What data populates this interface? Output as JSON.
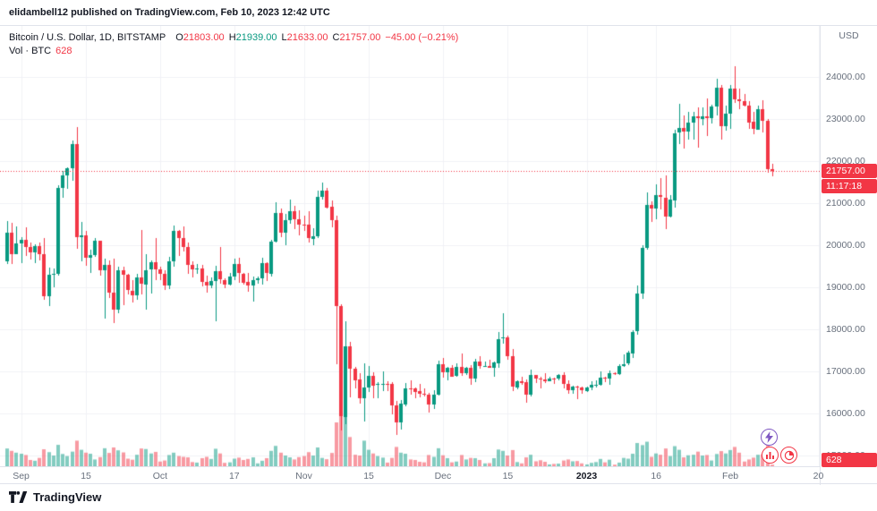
{
  "topbar": {
    "text": "elidambell12 published on TradingView.com, Feb 10, 2023 12:42 UTC"
  },
  "legend": {
    "symbol": "Bitcoin / U.S. Dollar, 1D, BITSTAMP",
    "o_label": "O",
    "o": "21803.00",
    "h_label": "H",
    "h": "21939.00",
    "l_label": "L",
    "l": "21633.00",
    "c_label": "C",
    "c": "21757.00",
    "change": "−45.00 (−0.21%)",
    "vol_label": "Vol · BTC",
    "vol_value": "628"
  },
  "price_scale": {
    "currency": "USD",
    "last_price": "21757.00",
    "countdown": "11:17:18",
    "volume": "628"
  },
  "footer": {
    "brand": "TradingView"
  },
  "icons": {
    "boost": "lightning-icon",
    "reaction_1": "bar-chart-icon",
    "reaction_2": "pie-chart-icon",
    "logo": "tradingview-logo"
  },
  "colors": {
    "up": "#089981",
    "down": "#f23645",
    "vol_up": "rgba(8,153,129,0.5)",
    "vol_down": "rgba(242,54,69,0.5)",
    "badge_bg": "#f23645",
    "boost_purple": "#7e57c2",
    "grid": "#f0f2f6"
  },
  "chart_data": {
    "type": "candlestick",
    "title": "Bitcoin / U.S. Dollar",
    "interval": "1D",
    "exchange": "BITSTAMP",
    "currency": "USD",
    "start_date": "2022-08-29",
    "last_close": 21757,
    "ylim": [
      14750,
      25200
    ],
    "y_ticks": [
      24000,
      23000,
      22000,
      21000,
      20000,
      19000,
      18000,
      17000,
      16000,
      15000
    ],
    "x_ticks": [
      {
        "i": 3,
        "label": "Sep"
      },
      {
        "i": 17,
        "label": "15"
      },
      {
        "i": 33,
        "label": "Oct"
      },
      {
        "i": 49,
        "label": "17"
      },
      {
        "i": 64,
        "label": "Nov"
      },
      {
        "i": 78,
        "label": "15"
      },
      {
        "i": 94,
        "label": "Dec"
      },
      {
        "i": 108,
        "label": "15"
      },
      {
        "i": 125,
        "label": "2023",
        "major": true
      },
      {
        "i": 140,
        "label": "16"
      },
      {
        "i": 156,
        "label": "Feb"
      },
      {
        "i": 175,
        "label": "20"
      }
    ],
    "columns": [
      "open",
      "high",
      "low",
      "close",
      "volume_btc"
    ],
    "candles": [
      [
        19616,
        20576,
        19553,
        20297,
        6800
      ],
      [
        20297,
        20542,
        19570,
        19796,
        5900
      ],
      [
        19796,
        20449,
        19791,
        20050,
        5200
      ],
      [
        20050,
        20198,
        19583,
        20130,
        4800
      ],
      [
        20130,
        20432,
        19758,
        19951,
        4300
      ],
      [
        19951,
        20055,
        19655,
        19831,
        2400
      ],
      [
        19831,
        20025,
        19588,
        19988,
        2100
      ],
      [
        19988,
        20060,
        19635,
        19794,
        3200
      ],
      [
        19794,
        20180,
        18716,
        18790,
        6500
      ],
      [
        18790,
        19464,
        18540,
        19290,
        5400
      ],
      [
        19290,
        19450,
        19000,
        19320,
        4100
      ],
      [
        19320,
        21430,
        19290,
        21360,
        8200
      ],
      [
        21360,
        21770,
        21130,
        21650,
        4700
      ],
      [
        21650,
        21850,
        21350,
        21826,
        3900
      ],
      [
        21826,
        22488,
        21536,
        22395,
        5600
      ],
      [
        22395,
        22799,
        19900,
        20173,
        9800
      ],
      [
        20173,
        20550,
        19620,
        20226,
        6300
      ],
      [
        20226,
        20330,
        19501,
        19701,
        5200
      ],
      [
        19701,
        19890,
        19335,
        19772,
        4800
      ],
      [
        19772,
        20180,
        19742,
        20115,
        2600
      ],
      [
        20115,
        20117,
        19289,
        19416,
        3500
      ],
      [
        19416,
        19690,
        18256,
        19537,
        6900
      ],
      [
        19537,
        19639,
        18750,
        18875,
        5100
      ],
      [
        18875,
        19688,
        18155,
        18461,
        7200
      ],
      [
        18461,
        19500,
        18390,
        19401,
        6100
      ],
      [
        19401,
        19480,
        18566,
        19289,
        5300
      ],
      [
        19289,
        19310,
        18813,
        18920,
        2900
      ],
      [
        18920,
        19180,
        18648,
        18807,
        2500
      ],
      [
        18807,
        19320,
        18707,
        19227,
        4400
      ],
      [
        19227,
        20370,
        18830,
        19079,
        6800
      ],
      [
        19079,
        19790,
        18477,
        19412,
        6600
      ],
      [
        19412,
        19640,
        18852,
        19591,
        4900
      ],
      [
        19591,
        20175,
        19170,
        19422,
        5500
      ],
      [
        19422,
        19484,
        19160,
        19312,
        1800
      ],
      [
        19312,
        19398,
        18920,
        19044,
        2200
      ],
      [
        19044,
        19717,
        18958,
        19623,
        4300
      ],
      [
        19623,
        20475,
        19500,
        20336,
        5200
      ],
      [
        20336,
        20365,
        19740,
        20160,
        3900
      ],
      [
        20160,
        20456,
        19870,
        19955,
        3600
      ],
      [
        19955,
        20060,
        19320,
        19527,
        3400
      ],
      [
        19527,
        19617,
        19240,
        19416,
        1600
      ],
      [
        19416,
        19558,
        19321,
        19441,
        1400
      ],
      [
        19441,
        19525,
        19021,
        19131,
        3100
      ],
      [
        19131,
        19270,
        18860,
        19043,
        3600
      ],
      [
        19043,
        19230,
        18980,
        19153,
        2800
      ],
      [
        19153,
        19513,
        18190,
        19378,
        6700
      ],
      [
        19378,
        19948,
        19070,
        19178,
        4900
      ],
      [
        19178,
        19210,
        18975,
        19067,
        1300
      ],
      [
        19067,
        19330,
        19027,
        19260,
        1500
      ],
      [
        19260,
        19673,
        19155,
        19548,
        2900
      ],
      [
        19548,
        19706,
        19100,
        19327,
        3300
      ],
      [
        19327,
        19348,
        19066,
        19122,
        2400
      ],
      [
        19122,
        19347,
        18905,
        19041,
        2800
      ],
      [
        19041,
        19250,
        18650,
        19164,
        3400
      ],
      [
        19164,
        19257,
        19090,
        19203,
        1100
      ],
      [
        19203,
        19700,
        19070,
        19570,
        2100
      ],
      [
        19570,
        19601,
        19157,
        19328,
        3100
      ],
      [
        19328,
        20120,
        19255,
        20085,
        5900
      ],
      [
        20085,
        21022,
        20056,
        20773,
        7800
      ],
      [
        20773,
        20879,
        20192,
        20295,
        5200
      ],
      [
        20295,
        20755,
        20000,
        20592,
        4100
      ],
      [
        20592,
        21085,
        20510,
        20808,
        3400
      ],
      [
        20808,
        20931,
        20380,
        20626,
        2600
      ],
      [
        20626,
        20826,
        20236,
        20490,
        3500
      ],
      [
        20490,
        20700,
        20330,
        20483,
        3900
      ],
      [
        20483,
        20800,
        20060,
        20155,
        5400
      ],
      [
        20155,
        20395,
        19990,
        20210,
        4100
      ],
      [
        20210,
        21300,
        20180,
        21147,
        7200
      ],
      [
        21147,
        21480,
        21070,
        21299,
        3200
      ],
      [
        21299,
        21360,
        20880,
        20905,
        2700
      ],
      [
        20905,
        21069,
        20430,
        20591,
        5100
      ],
      [
        20591,
        20700,
        17166,
        18547,
        16800
      ],
      [
        18547,
        18590,
        15588,
        15922,
        24000
      ],
      [
        15922,
        18199,
        15754,
        17601,
        22500
      ],
      [
        17601,
        17700,
        16384,
        17068,
        11200
      ],
      [
        17068,
        17100,
        16600,
        16799,
        4400
      ],
      [
        16799,
        16955,
        16229,
        16353,
        4100
      ],
      [
        16353,
        17190,
        15815,
        16618,
        9800
      ],
      [
        16618,
        17134,
        16527,
        16900,
        6300
      ],
      [
        16900,
        16985,
        16378,
        16669,
        4900
      ],
      [
        16669,
        16750,
        16360,
        16692,
        3900
      ],
      [
        16692,
        17005,
        16545,
        16700,
        3300
      ],
      [
        16700,
        16775,
        16540,
        16696,
        1400
      ],
      [
        16696,
        16745,
        15987,
        16190,
        3200
      ],
      [
        16190,
        16290,
        15476,
        15782,
        7400
      ],
      [
        15782,
        16315,
        15617,
        16228,
        5200
      ],
      [
        16228,
        16716,
        16160,
        16603,
        4800
      ],
      [
        16603,
        16790,
        16455,
        16600,
        2600
      ],
      [
        16600,
        16610,
        16345,
        16522,
        2400
      ],
      [
        16522,
        16700,
        16386,
        16464,
        1700
      ],
      [
        16464,
        16594,
        16400,
        16444,
        1500
      ],
      [
        16444,
        16480,
        16010,
        16217,
        4300
      ],
      [
        16217,
        16547,
        16100,
        16444,
        3600
      ],
      [
        16444,
        17249,
        16428,
        17168,
        6900
      ],
      [
        17168,
        17324,
        16855,
        16980,
        4200
      ],
      [
        16980,
        17105,
        16790,
        17092,
        3100
      ],
      [
        17092,
        17140,
        16860,
        16888,
        1500
      ],
      [
        16888,
        17202,
        16880,
        17107,
        1800
      ],
      [
        17107,
        17424,
        16890,
        16966,
        4300
      ],
      [
        16966,
        17107,
        16905,
        17089,
        2600
      ],
      [
        17089,
        17142,
        16680,
        16836,
        3200
      ],
      [
        16836,
        17300,
        16750,
        17231,
        3100
      ],
      [
        17231,
        17360,
        17060,
        17127,
        2400
      ],
      [
        17127,
        17225,
        17095,
        17127,
        1100
      ],
      [
        17127,
        17270,
        17071,
        17086,
        1200
      ],
      [
        17086,
        17240,
        16873,
        17206,
        3100
      ],
      [
        17206,
        17935,
        17080,
        17776,
        6400
      ],
      [
        17776,
        18387,
        17660,
        17804,
        5900
      ],
      [
        17804,
        17854,
        17275,
        17354,
        4100
      ],
      [
        17354,
        17530,
        16527,
        16632,
        6200
      ],
      [
        16632,
        16795,
        16580,
        16776,
        1600
      ],
      [
        16776,
        16862,
        16666,
        16739,
        1100
      ],
      [
        16739,
        16812,
        16256,
        16439,
        3400
      ],
      [
        16439,
        17040,
        16398,
        16906,
        4400
      ],
      [
        16906,
        16925,
        16725,
        16824,
        1900
      ],
      [
        16824,
        16870,
        16585,
        16818,
        2300
      ],
      [
        16818,
        16955,
        16730,
        16778,
        1700
      ],
      [
        16778,
        16870,
        16755,
        16837,
        700
      ],
      [
        16837,
        16857,
        16700,
        16832,
        900
      ],
      [
        16832,
        16945,
        16800,
        16919,
        1000
      ],
      [
        16919,
        16977,
        16590,
        16706,
        2200
      ],
      [
        16706,
        16788,
        16465,
        16547,
        2600
      ],
      [
        16547,
        16665,
        16480,
        16633,
        1900
      ],
      [
        16633,
        16650,
        16330,
        16607,
        2000
      ],
      [
        16607,
        16645,
        16470,
        16537,
        1100
      ],
      [
        16537,
        16630,
        16499,
        16615,
        700
      ],
      [
        16615,
        16770,
        16550,
        16672,
        1300
      ],
      [
        16672,
        16780,
        16600,
        16675,
        1600
      ],
      [
        16675,
        16990,
        16640,
        16850,
        2800
      ],
      [
        16850,
        16880,
        16753,
        16831,
        1500
      ],
      [
        16831,
        17030,
        16679,
        16950,
        2500
      ],
      [
        16950,
        16980,
        16910,
        16943,
        600
      ],
      [
        16943,
        17176,
        16911,
        17127,
        1400
      ],
      [
        17127,
        17398,
        17104,
        17178,
        3200
      ],
      [
        17178,
        17490,
        17146,
        17440,
        2900
      ],
      [
        17440,
        17985,
        17315,
        17943,
        4800
      ],
      [
        17943,
        19052,
        17892,
        18846,
        8900
      ],
      [
        18846,
        19990,
        18714,
        19930,
        8100
      ],
      [
        19930,
        21258,
        19890,
        20954,
        9400
      ],
      [
        20954,
        21050,
        20560,
        20871,
        3600
      ],
      [
        20871,
        21438,
        20611,
        21185,
        4900
      ],
      [
        21185,
        21590,
        20850,
        21134,
        4400
      ],
      [
        21134,
        21650,
        20380,
        20677,
        6800
      ],
      [
        20677,
        21190,
        20660,
        21076,
        3900
      ],
      [
        21076,
        22755,
        20900,
        22666,
        7700
      ],
      [
        22666,
        23370,
        22422,
        22783,
        6300
      ],
      [
        22783,
        23078,
        22300,
        22707,
        3400
      ],
      [
        22707,
        23180,
        22525,
        22916,
        4200
      ],
      [
        22916,
        23165,
        22500,
        23060,
        4400
      ],
      [
        23060,
        23268,
        22300,
        23009,
        5600
      ],
      [
        23009,
        23282,
        22850,
        23074,
        4100
      ],
      [
        23074,
        23494,
        22590,
        23021,
        4300
      ],
      [
        23021,
        23330,
        22880,
        23300,
        2200
      ],
      [
        23300,
        23960,
        23080,
        23740,
        4700
      ],
      [
        23740,
        23800,
        22500,
        22825,
        5800
      ],
      [
        22825,
        23320,
        22714,
        23125,
        4900
      ],
      [
        23125,
        23810,
        22760,
        23723,
        6200
      ],
      [
        23723,
        24255,
        23380,
        23471,
        7400
      ],
      [
        23471,
        23715,
        23230,
        23425,
        5200
      ],
      [
        23425,
        23588,
        23290,
        23325,
        1800
      ],
      [
        23325,
        23430,
        22760,
        22930,
        2600
      ],
      [
        22930,
        23160,
        22630,
        22760,
        3300
      ],
      [
        22760,
        23320,
        22745,
        23240,
        4400
      ],
      [
        23240,
        23452,
        22680,
        22960,
        4600
      ],
      [
        22960,
        23010,
        21730,
        21802,
        9200
      ],
      [
        21803,
        21939,
        21633,
        21757,
        628
      ]
    ]
  }
}
